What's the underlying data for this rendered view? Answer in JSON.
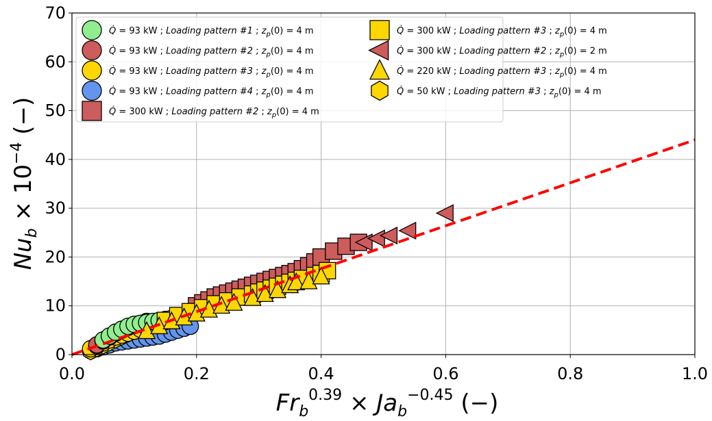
{
  "chart_data": {
    "type": "scatter",
    "title": "",
    "xlabel": {
      "base": "Fr",
      "sub": "b",
      "sup": "0.39",
      "mid": " × ",
      "base2": "Ja",
      "sub2": "b",
      "sup2": "−0.45",
      "unit": " (−)"
    },
    "ylabel": {
      "base": "Nu",
      "sub": "b",
      "mid": " × 10",
      "sup": "−4",
      "unit": " (−)"
    },
    "xlim": [
      0.0,
      1.0
    ],
    "ylim": [
      0,
      70
    ],
    "xticks": [
      "0.0",
      "0.2",
      "0.4",
      "0.6",
      "0.8",
      "1.0"
    ],
    "yticks": [
      "0",
      "10",
      "20",
      "30",
      "40",
      "50",
      "60",
      "70"
    ],
    "grid": true,
    "legend_position": "top-left",
    "fit_line": {
      "x": [
        0.0,
        1.0
      ],
      "y": [
        0,
        44
      ],
      "color": "#ff0000",
      "style": "dashed"
    },
    "series": [
      {
        "Q": "93",
        "pattern": "1",
        "zp": "4",
        "marker": "circle",
        "color": "#90ee90",
        "x": [
          0.05,
          0.06,
          0.07,
          0.08,
          0.09,
          0.1,
          0.11,
          0.12,
          0.13,
          0.14,
          0.15,
          0.16
        ],
        "y": [
          3.0,
          3.8,
          4.6,
          5.2,
          5.8,
          6.2,
          6.4,
          6.6,
          6.8,
          7.0,
          7.2,
          7.4
        ]
      },
      {
        "Q": "93",
        "pattern": "2",
        "zp": "4",
        "marker": "circle",
        "color": "#cd5c5c",
        "x": [
          0.04,
          0.05,
          0.06,
          0.07,
          0.08,
          0.09,
          0.1,
          0.11,
          0.12
        ],
        "y": [
          2.0,
          2.8,
          3.6,
          4.4,
          5.0,
          5.6,
          6.0,
          6.4,
          6.8
        ]
      },
      {
        "Q": "93",
        "pattern": "3",
        "zp": "4",
        "marker": "circle",
        "color": "#ffd700",
        "x": [
          0.03,
          0.04,
          0.05,
          0.06,
          0.07,
          0.08,
          0.09,
          0.1,
          0.11,
          0.12,
          0.13,
          0.14,
          0.15
        ],
        "y": [
          1.2,
          1.8,
          2.4,
          3.0,
          3.6,
          4.0,
          4.4,
          4.8,
          5.2,
          5.6,
          6.0,
          6.4,
          6.8
        ]
      },
      {
        "Q": "93",
        "pattern": "4",
        "zp": "4",
        "marker": "circle",
        "color": "#6495ed",
        "x": [
          0.03,
          0.04,
          0.05,
          0.06,
          0.07,
          0.08,
          0.09,
          0.1,
          0.11,
          0.12,
          0.13,
          0.14,
          0.15,
          0.16,
          0.17,
          0.18,
          0.19
        ],
        "y": [
          0.8,
          1.2,
          1.6,
          2.0,
          2.4,
          2.6,
          2.8,
          3.0,
          3.2,
          3.4,
          3.6,
          3.8,
          4.2,
          4.6,
          5.0,
          5.4,
          5.8
        ]
      },
      {
        "Q": "300",
        "pattern": "2",
        "zp": "4",
        "marker": "square",
        "color": "#cd5c5c",
        "x": [
          0.2,
          0.21,
          0.22,
          0.23,
          0.24,
          0.25,
          0.26,
          0.27,
          0.28,
          0.29,
          0.3,
          0.31,
          0.32,
          0.33,
          0.34,
          0.35,
          0.36,
          0.37,
          0.38,
          0.39,
          0.4,
          0.42,
          0.44,
          0.46
        ],
        "y": [
          10.0,
          10.6,
          11.2,
          11.8,
          12.2,
          12.6,
          13.0,
          13.4,
          13.8,
          14.2,
          14.6,
          15.0,
          15.4,
          15.8,
          16.2,
          16.6,
          17.0,
          17.6,
          18.2,
          19.0,
          20.0,
          21.2,
          22.2,
          23.0
        ]
      },
      {
        "Q": "300",
        "pattern": "3",
        "zp": "4",
        "marker": "square",
        "color": "#ffd700",
        "x": [
          0.15,
          0.17,
          0.19,
          0.21,
          0.23,
          0.25,
          0.27,
          0.29,
          0.3,
          0.31,
          0.32,
          0.33,
          0.34,
          0.35,
          0.36,
          0.37,
          0.39,
          0.4,
          0.41
        ],
        "y": [
          7.0,
          8.0,
          8.8,
          9.6,
          10.4,
          11.0,
          11.8,
          12.4,
          12.8,
          13.2,
          13.6,
          14.0,
          14.4,
          14.8,
          15.2,
          15.6,
          16.2,
          16.6,
          17.2
        ]
      },
      {
        "Q": "300",
        "pattern": "2",
        "zp": "2",
        "marker": "triangle-left",
        "color": "#cd5c5c",
        "x": [
          0.47,
          0.49,
          0.51,
          0.54,
          0.6
        ],
        "y": [
          23.0,
          23.8,
          24.4,
          25.4,
          29.0
        ]
      },
      {
        "Q": "220",
        "pattern": "3",
        "zp": "4",
        "marker": "triangle-up",
        "color": "#ffd700",
        "x": [
          0.12,
          0.14,
          0.16,
          0.18,
          0.2,
          0.22,
          0.24,
          0.26,
          0.29,
          0.31,
          0.33,
          0.35,
          0.36,
          0.38,
          0.4
        ],
        "y": [
          4.8,
          5.8,
          6.8,
          7.6,
          8.4,
          9.2,
          10.0,
          10.6,
          11.6,
          12.4,
          13.2,
          14.2,
          14.8,
          15.0,
          16.0
        ]
      },
      {
        "Q": "50",
        "pattern": "3",
        "zp": "4",
        "marker": "hexagon",
        "color": "#ffd700",
        "x": [
          0.03,
          0.04,
          0.05,
          0.06,
          0.07,
          0.08,
          0.09
        ],
        "y": [
          0.6,
          1.2,
          1.8,
          2.4,
          3.0,
          3.6,
          4.2
        ]
      }
    ],
    "legend_entries": [
      {
        "q_value": "= 93 kW",
        "sep": " ;",
        "pattern_label": "Loading pattern #1",
        "sep2": " ;",
        "zp_value": "= 4 m"
      },
      {
        "q_value": "= 93 kW",
        "sep": " ;",
        "pattern_label": "Loading pattern #2",
        "sep2": " ;",
        "zp_value": "= 4 m"
      },
      {
        "q_value": "= 93 kW",
        "sep": " ;",
        "pattern_label": "Loading pattern #3",
        "sep2": " ;",
        "zp_value": "= 4 m"
      },
      {
        "q_value": "= 93 kW",
        "sep": " ;",
        "pattern_label": "Loading pattern #4",
        "sep2": " ;",
        "zp_value": "= 4 m"
      },
      {
        "q_value": "= 300 kW",
        "sep": " ;",
        "pattern_label": "Loading pattern #2",
        "sep2": " ;",
        "zp_value": "= 4 m"
      },
      {
        "q_value": "= 300 kW",
        "sep": " ;",
        "pattern_label": "Loading pattern #3",
        "sep2": " ;",
        "zp_value": "= 4 m"
      },
      {
        "q_value": "= 300 kW",
        "sep": " ;",
        "pattern_label": "Loading pattern #2",
        "sep2": " ;",
        "zp_value": "= 2 m"
      },
      {
        "q_value": "= 220 kW",
        "sep": " ;",
        "pattern_label": "Loading pattern #3",
        "sep2": " ;",
        "zp_value": "= 4 m"
      },
      {
        "q_value": "= 50 kW  ",
        "sep": " ;",
        "pattern_label": "Loading pattern #3",
        "sep2": " ;",
        "zp_value": "= 4 m"
      }
    ]
  }
}
